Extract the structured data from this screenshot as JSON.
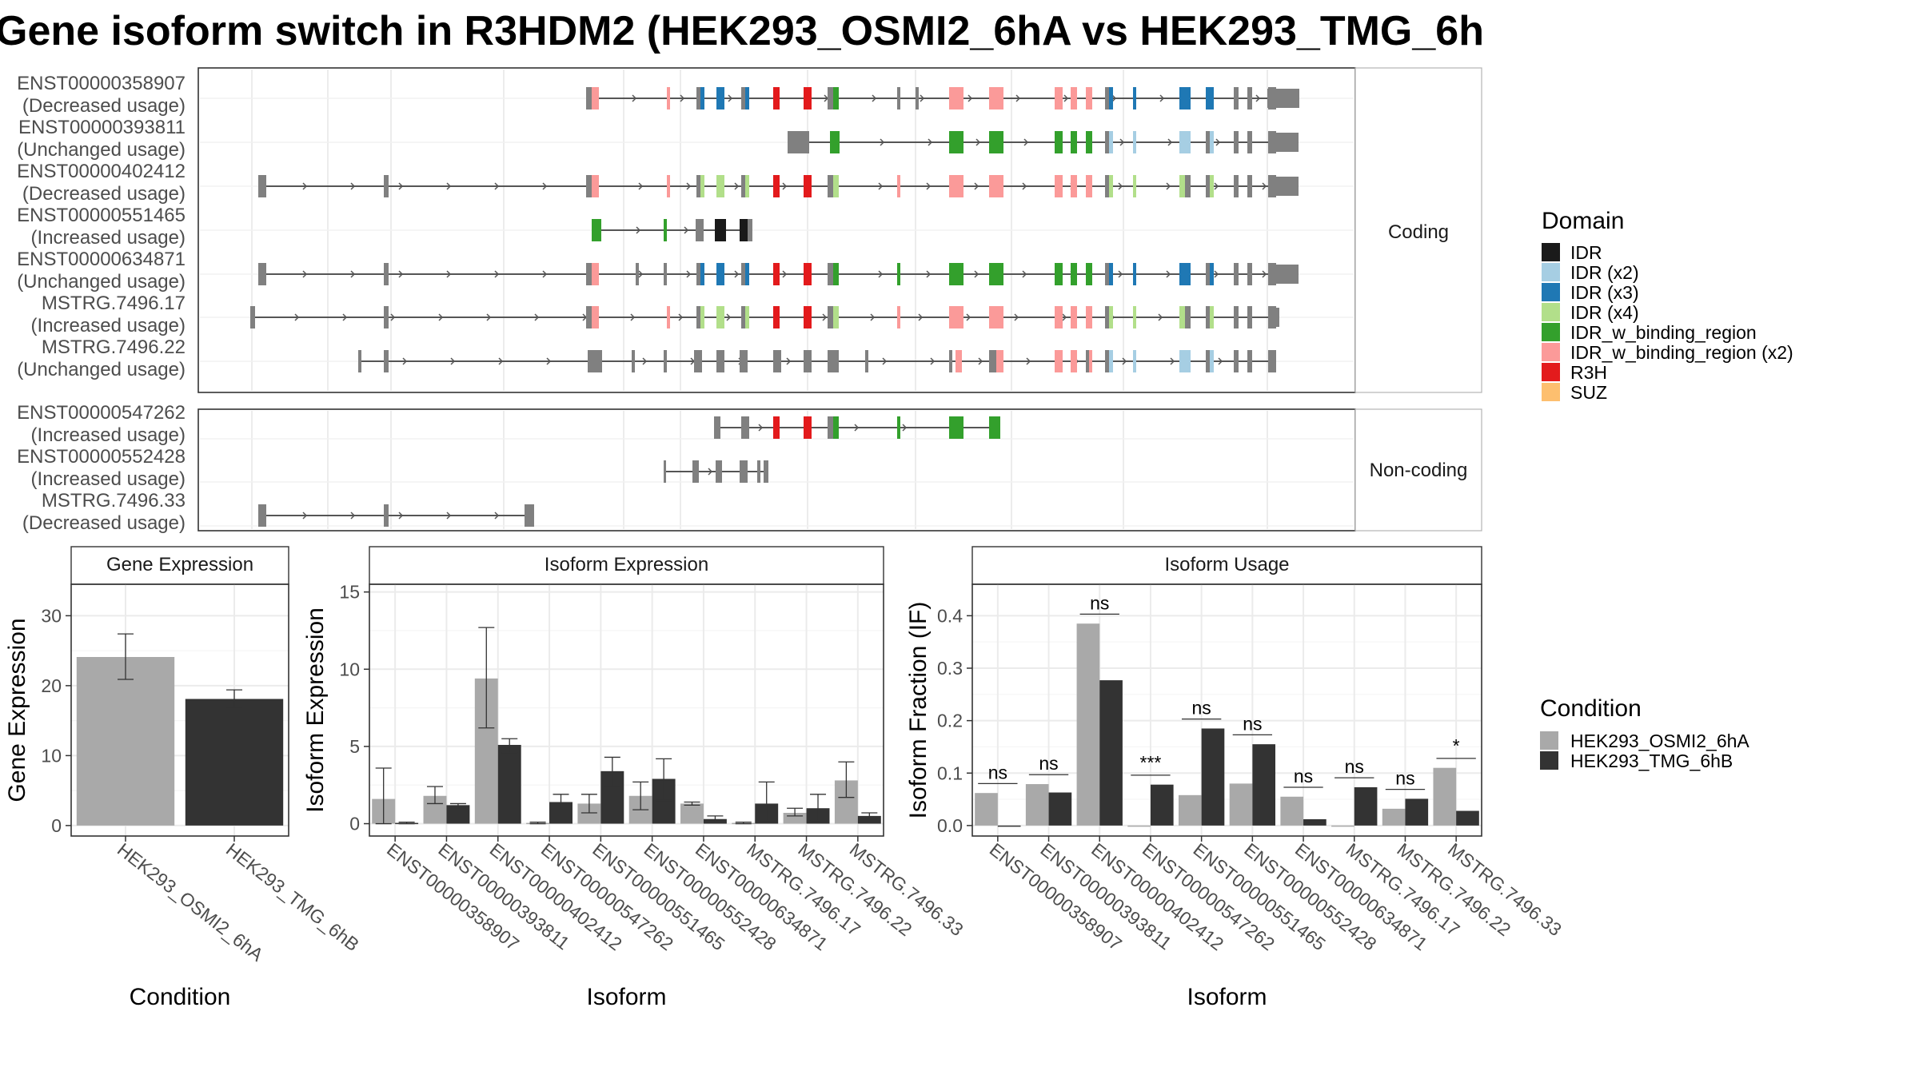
{
  "title": "Gene isoform switch in R3HDM2 (HEK293_OSMI2_6hA vs HEK293_TMG_6h",
  "colors": {
    "IDR": "#1a1a1a",
    "IDR (x2)": "#a6cee3",
    "IDR (x3)": "#1f78b4",
    "IDR (x4)": "#b2df8a",
    "IDR_w_binding_region": "#33a02c",
    "IDR_w_binding_region (x2)": "#fb9a99",
    "R3H": "#e31a1c",
    "SUZ": "#fdbf6f",
    "exon": "#808080",
    "cond1": "#a9a9a9",
    "cond2": "#333333"
  },
  "structure": {
    "facets": [
      "Coding",
      "Non-coding"
    ],
    "coding_isoforms": [
      {
        "id": "ENST00000358907",
        "usage": "(Decreased usage)"
      },
      {
        "id": "ENST00000393811",
        "usage": "(Unchanged usage)"
      },
      {
        "id": "ENST00000402412",
        "usage": "(Decreased usage)"
      },
      {
        "id": "ENST00000551465",
        "usage": "(Increased usage)"
      },
      {
        "id": "ENST00000634871",
        "usage": "(Unchanged usage)"
      },
      {
        "id": "MSTRG.7496.17",
        "usage": "(Increased usage)"
      },
      {
        "id": "MSTRG.7496.22",
        "usage": "(Unchanged usage)"
      }
    ],
    "noncoding_isoforms": [
      {
        "id": "ENST00000547262",
        "usage": "(Increased usage)"
      },
      {
        "id": "ENST00000552428",
        "usage": "(Increased usage)"
      },
      {
        "id": "MSTRG.7496.33",
        "usage": "(Decreased usage)"
      }
    ]
  },
  "legend_domain": {
    "title": "Domain",
    "items": [
      "IDR",
      "IDR (x2)",
      "IDR (x3)",
      "IDR (x4)",
      "IDR_w_binding_region",
      "IDR_w_binding_region (x2)",
      "R3H",
      "SUZ"
    ]
  },
  "legend_condition": {
    "title": "Condition",
    "items": [
      "HEK293_OSMI2_6hA",
      "HEK293_TMG_6hB"
    ]
  },
  "chart_data": [
    {
      "type": "bar",
      "title": "Gene Expression",
      "xlabel": "Condition",
      "ylabel": "Gene Expression",
      "ylim": [
        -1.5,
        34.5
      ],
      "yticks": [
        0,
        10,
        20,
        30
      ],
      "categories": [
        "HEK293_OSMI2_6hA",
        "HEK293_TMG_6hB"
      ],
      "values": [
        24.1,
        18.1
      ],
      "errors": [
        [
          20.9,
          27.4
        ],
        [
          16.9,
          19.4
        ]
      ]
    },
    {
      "type": "bar",
      "title": "Isoform Expression",
      "xlabel": "Isoform",
      "ylabel": "Isoform Expression",
      "ylim": [
        -0.8,
        15.5
      ],
      "yticks": [
        0,
        5,
        10,
        15
      ],
      "categories": [
        "ENST00000358907",
        "ENST00000393811",
        "ENST00000402412",
        "ENST00000547262",
        "ENST00000551465",
        "ENST00000552428",
        "ENST00000634871",
        "MSTRG.7496.17",
        "MSTRG.7496.22",
        "MSTRG.7496.33"
      ],
      "series": [
        {
          "name": "HEK293_OSMI2_6hA",
          "values": [
            1.6,
            1.8,
            9.4,
            0.05,
            1.3,
            1.8,
            1.3,
            0.05,
            0.7,
            2.8
          ],
          "errors": [
            [
              0,
              3.6
            ],
            [
              1.3,
              2.4
            ],
            [
              6.2,
              12.7
            ],
            [
              0,
              0.1
            ],
            [
              0.7,
              1.9
            ],
            [
              0.9,
              2.7
            ],
            [
              1.2,
              1.4
            ],
            [
              0,
              0.1
            ],
            [
              0.5,
              1.0
            ],
            [
              1.7,
              4.0
            ]
          ]
        },
        {
          "name": "HEK293_TMG_6hB",
          "values": [
            0.05,
            1.2,
            5.1,
            1.4,
            3.4,
            2.9,
            0.3,
            1.3,
            1.0,
            0.5
          ],
          "errors": [
            [
              0,
              0.1
            ],
            [
              1.0,
              1.3
            ],
            [
              4.6,
              5.5
            ],
            [
              0.9,
              1.9
            ],
            [
              2.4,
              4.3
            ],
            [
              1.5,
              4.2
            ],
            [
              0.1,
              0.5
            ],
            [
              0.2,
              2.7
            ],
            [
              0.2,
              1.9
            ],
            [
              0.3,
              0.7
            ]
          ]
        }
      ]
    },
    {
      "type": "bar",
      "title": "Isoform Usage",
      "xlabel": "Isoform",
      "ylabel": "Isoform Fraction (IF)",
      "ylim": [
        -0.02,
        0.46
      ],
      "yticks": [
        0.0,
        0.1,
        0.2,
        0.3,
        0.4
      ],
      "ytick_labels": [
        "0.0",
        "0.1",
        "0.2",
        "0.3",
        "0.4"
      ],
      "categories": [
        "ENST00000358907",
        "ENST00000393811",
        "ENST00000402412",
        "ENST00000547262",
        "ENST00000551465",
        "ENST00000552428",
        "ENST00000634871",
        "MSTRG.7496.17",
        "MSTRG.7496.22",
        "MSTRG.7496.33"
      ],
      "series": [
        {
          "name": "HEK293_OSMI2_6hA",
          "values": [
            0.062,
            0.079,
            0.385,
            0.0,
            0.058,
            0.08,
            0.055,
            0.0,
            0.032,
            0.11
          ]
        },
        {
          "name": "HEK293_TMG_6hB",
          "values": [
            0.0,
            0.063,
            0.277,
            0.078,
            0.185,
            0.155,
            0.012,
            0.073,
            0.051,
            0.028
          ]
        }
      ],
      "significance": [
        "ns",
        "ns",
        "ns",
        "***",
        "ns",
        "ns",
        "ns",
        "ns",
        "ns",
        "*"
      ]
    }
  ]
}
